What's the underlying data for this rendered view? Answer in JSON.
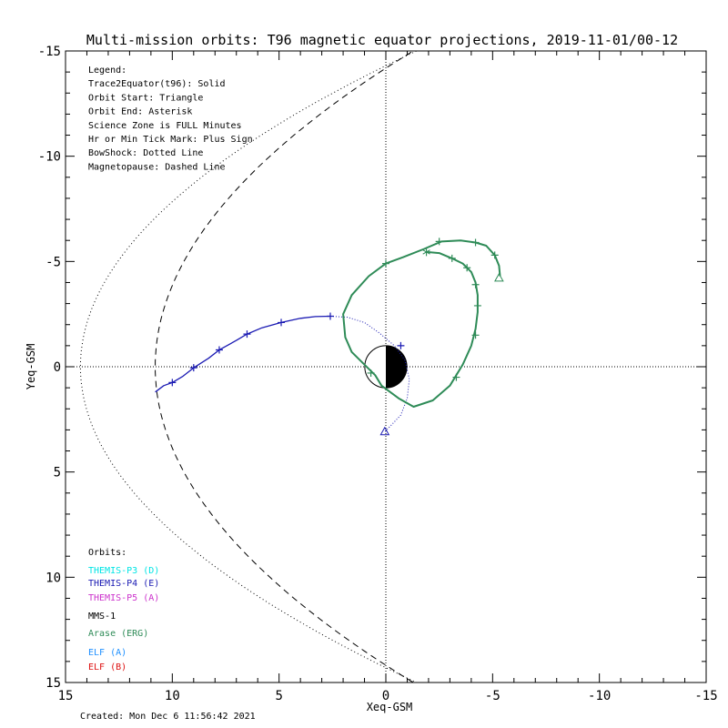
{
  "chart_data": {
    "type": "line",
    "title": "Multi-mission orbits: T96 magnetic equator projections, 2019-11-01/00-12",
    "xlabel": "Xeq-GSM",
    "ylabel": "Yeq-GSM",
    "xlim": [
      15,
      -15
    ],
    "ylim": [
      -15,
      15
    ],
    "x_ticks": [
      "15",
      "10",
      "5",
      "0",
      "-5",
      "-10",
      "-15"
    ],
    "y_ticks": [
      "-15",
      "-10",
      "-5",
      "0",
      "5",
      "10",
      "15"
    ],
    "grid": false,
    "legend_lines": [
      "Legend:",
      "Trace2Equator(t96): Solid",
      "Orbit Start: Triangle",
      "Orbit End: Asterisk",
      "Science Zone is FULL Minutes",
      "Hr or Min Tick Mark: Plus Sign",
      "BowShock: Dotted Line",
      "Magnetopause: Dashed Line"
    ],
    "orbits_title": "Orbits:",
    "orbits": [
      {
        "label": "THEMIS-P3 (D)",
        "color": "#00e5e5"
      },
      {
        "label": "THEMIS-P4 (E)",
        "color": "#1a1ab3"
      },
      {
        "label": "THEMIS-P5 (A)",
        "color": "#cc33cc"
      },
      {
        "label": "MMS-1",
        "color": "#000000"
      },
      {
        "label": "Arase (ERG)",
        "color": "#2e8b57"
      },
      {
        "label": "ELF (A)",
        "color": "#1e90ff"
      },
      {
        "label": "ELF (B)",
        "color": "#dd1111"
      }
    ],
    "created_text": "Created: Mon Dec  6 11:56:42 2021",
    "series": [
      {
        "name": "THEMIS-P4 (E)",
        "color": "#1a1ab3",
        "solid": [
          [
            10.8,
            1.2
          ],
          [
            10.4,
            0.9
          ],
          [
            10.0,
            0.75
          ],
          [
            9.5,
            0.45
          ],
          [
            9.0,
            0.05
          ],
          [
            8.3,
            -0.4
          ],
          [
            7.8,
            -0.8
          ],
          [
            7.0,
            -1.25
          ],
          [
            6.5,
            -1.55
          ],
          [
            5.8,
            -1.85
          ],
          [
            4.9,
            -2.1
          ],
          [
            4.0,
            -2.3
          ],
          [
            3.3,
            -2.38
          ],
          [
            2.6,
            -2.4
          ]
        ],
        "dotted": [
          [
            2.6,
            -2.4
          ],
          [
            1.8,
            -2.35
          ],
          [
            1.0,
            -2.1
          ],
          [
            0.3,
            -1.6
          ],
          [
            -0.4,
            -1.0
          ],
          [
            -0.9,
            -0.3
          ],
          [
            -1.1,
            0.6
          ],
          [
            -1.0,
            1.5
          ],
          [
            -0.7,
            2.3
          ],
          [
            0.05,
            3.1
          ]
        ],
        "ticks": [
          [
            10.0,
            0.75
          ],
          [
            9.0,
            0.05
          ],
          [
            7.8,
            -0.8
          ],
          [
            6.5,
            -1.55
          ],
          [
            4.9,
            -2.1
          ],
          [
            2.6,
            -2.4
          ],
          [
            -0.7,
            -1.0
          ]
        ],
        "start": [
          0.05,
          3.1
        ]
      },
      {
        "name": "Arase (ERG)",
        "color": "#2e8b57",
        "solid": [
          [
            -5.35,
            -4.3
          ],
          [
            -5.3,
            -4.8
          ],
          [
            -5.1,
            -5.3
          ],
          [
            -4.7,
            -5.75
          ],
          [
            -4.2,
            -5.9
          ],
          [
            -3.5,
            -6.0
          ],
          [
            -2.6,
            -5.95
          ],
          [
            -1.8,
            -5.6
          ],
          [
            -0.8,
            -5.2
          ],
          [
            0.0,
            -4.9
          ],
          [
            0.8,
            -4.3
          ],
          [
            1.6,
            -3.4
          ],
          [
            2.0,
            -2.5
          ],
          [
            1.9,
            -1.4
          ],
          [
            1.6,
            -0.7
          ],
          [
            1.0,
            -0.1
          ],
          [
            0.5,
            0.4
          ],
          [
            0.2,
            0.9
          ],
          [
            -0.6,
            1.5
          ],
          [
            -1.3,
            1.9
          ],
          [
            -2.2,
            1.6
          ],
          [
            -3.0,
            0.9
          ],
          [
            -3.6,
            -0.1
          ],
          [
            -4.0,
            -1.0
          ],
          [
            -4.2,
            -1.8
          ],
          [
            -4.3,
            -2.6
          ],
          [
            -4.3,
            -3.4
          ],
          [
            -4.2,
            -4.0
          ],
          [
            -4.0,
            -4.5
          ],
          [
            -3.6,
            -4.9
          ],
          [
            -3.1,
            -5.15
          ],
          [
            -2.5,
            -5.4
          ],
          [
            -1.9,
            -5.45
          ]
        ],
        "ticks": [
          [
            -5.1,
            -5.3
          ],
          [
            -4.2,
            -5.9
          ],
          [
            -2.5,
            -5.95
          ],
          [
            -3.1,
            -5.15
          ],
          [
            -3.8,
            -4.7
          ],
          [
            -4.2,
            -3.9
          ],
          [
            -4.3,
            -2.9
          ],
          [
            -4.2,
            -1.5
          ],
          [
            -3.3,
            0.5
          ],
          [
            0.0,
            -4.9
          ],
          [
            0.7,
            0.3
          ]
        ],
        "start": [
          -5.3,
          -4.2
        ],
        "end": [
          -1.9,
          -5.45
        ]
      }
    ],
    "bow_shock": {
      "standoff": 14.3,
      "flaring": 1.0
    },
    "magnetopause": {
      "standoff": 10.8,
      "flaring": 0.58
    }
  }
}
